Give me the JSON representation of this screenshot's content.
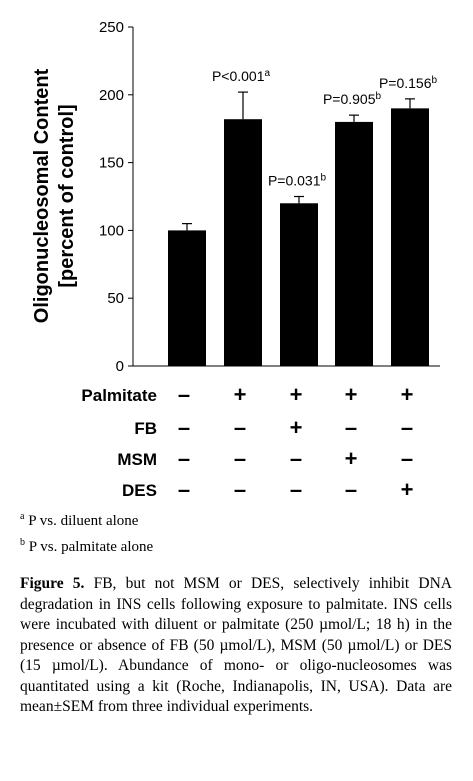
{
  "chart_data": {
    "type": "bar",
    "categories": [
      "Diluent",
      "Palmitate",
      "Palmitate+FB",
      "Palmitate+MSM",
      "Palmitate+DES"
    ],
    "values": [
      100,
      182,
      120,
      180,
      190
    ],
    "errors": [
      5,
      20,
      5,
      5,
      7
    ],
    "annotations": [
      {
        "text": "",
        "sup": ""
      },
      {
        "text": "P<0.001",
        "sup": "a"
      },
      {
        "text": "P=0.031",
        "sup": "b"
      },
      {
        "text": "P=0.905",
        "sup": "b"
      },
      {
        "text": "P=0.156",
        "sup": "b"
      }
    ],
    "ylabel_line1": "Oligonucleosomal Content",
    "ylabel_line2": "[percent of control]",
    "ylim": [
      0,
      250
    ],
    "yticks": [
      0,
      50,
      100,
      150,
      200,
      250
    ],
    "bar_color": "#000000",
    "grid": false
  },
  "treatment_table": {
    "rows": [
      {
        "label": "Palmitate",
        "signs": [
          "–",
          "+",
          "+",
          "+",
          "+"
        ]
      },
      {
        "label": "FB",
        "signs": [
          "–",
          "–",
          "+",
          "–",
          "–"
        ]
      },
      {
        "label": "MSM",
        "signs": [
          "–",
          "–",
          "–",
          "+",
          "–"
        ]
      },
      {
        "label": "DES",
        "signs": [
          "–",
          "–",
          "–",
          "–",
          "+"
        ]
      }
    ]
  },
  "footnotes": [
    {
      "mark": "a",
      "text": "P vs. diluent alone"
    },
    {
      "mark": "b",
      "text": "P vs. palmitate alone"
    }
  ],
  "caption": {
    "label": "Figure 5.",
    "text": "FB, but not MSM or DES, selectively inhibit DNA degradation in INS cells following exposure to palmitate. INS cells were incubated with diluent or palmitate (250 µmol/L; 18 h) in the presence or absence of FB (50 µmol/L), MSM (50 µmol/L) or DES (15 µmol/L). Abundance of mono- or oligo-nucleosomes was quantitated using a kit (Roche, Indianapolis, IN, USA). Data are mean±SEM from three individual experiments."
  }
}
